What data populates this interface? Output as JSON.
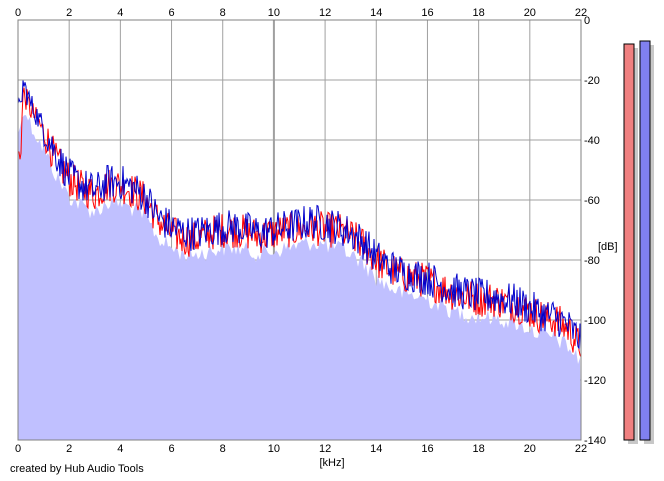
{
  "footer": "created by Hub Audio Tools",
  "colors": {
    "fill": "#c0c0ff",
    "left": "#ff0000",
    "right": "#0000cc",
    "grid": "#a0a0a0",
    "meter_left": "#f08080",
    "meter_right": "#8080f0"
  },
  "chart_data": {
    "type": "line",
    "xlabel": "[kHz]",
    "ylabel": "[dB]",
    "xlim": [
      0,
      22
    ],
    "ylim": [
      -140,
      0
    ],
    "x_ticks": [
      "0",
      "2",
      "4",
      "6",
      "8",
      "10",
      "12",
      "14",
      "16",
      "18",
      "20",
      "22"
    ],
    "y_ticks": [
      "0",
      "-20",
      "-40",
      "-60",
      "-80",
      "-100",
      "-120",
      "-140"
    ],
    "grid": true,
    "series": [
      {
        "color": "#ff0000",
        "points": [
          [
            0.1,
            -45
          ],
          [
            0.2,
            -24
          ],
          [
            0.5,
            -30
          ],
          [
            1,
            -37
          ],
          [
            1.5,
            -47
          ],
          [
            2,
            -53
          ],
          [
            2.5,
            -56
          ],
          [
            3,
            -58
          ],
          [
            3.5,
            -55
          ],
          [
            4,
            -55
          ],
          [
            4.5,
            -57
          ],
          [
            5,
            -60
          ],
          [
            5.5,
            -67
          ],
          [
            6,
            -71
          ],
          [
            6.5,
            -73
          ],
          [
            7,
            -73
          ],
          [
            7.5,
            -71
          ],
          [
            8,
            -70
          ],
          [
            8.5,
            -70
          ],
          [
            9,
            -71
          ],
          [
            9.5,
            -72
          ],
          [
            10,
            -71
          ],
          [
            10.5,
            -70
          ],
          [
            11,
            -70
          ],
          [
            11.5,
            -69
          ],
          [
            12,
            -70
          ],
          [
            12.5,
            -70
          ],
          [
            13,
            -72
          ],
          [
            13.5,
            -75
          ],
          [
            14,
            -80
          ],
          [
            14.5,
            -83
          ],
          [
            15,
            -85
          ],
          [
            15.5,
            -86
          ],
          [
            16,
            -87
          ],
          [
            16.5,
            -89
          ],
          [
            17,
            -91
          ],
          [
            17.5,
            -92
          ],
          [
            18,
            -93
          ],
          [
            18.5,
            -93
          ],
          [
            19,
            -94
          ],
          [
            19.5,
            -95
          ],
          [
            20,
            -97
          ],
          [
            20.5,
            -99
          ],
          [
            21,
            -100
          ],
          [
            21.5,
            -103
          ],
          [
            21.9,
            -108
          ]
        ]
      },
      {
        "color": "#0000cc",
        "points": [
          [
            0.1,
            -30
          ],
          [
            0.2,
            -21
          ],
          [
            0.5,
            -28
          ],
          [
            1,
            -36
          ],
          [
            1.5,
            -45
          ],
          [
            2,
            -52
          ],
          [
            2.5,
            -55
          ],
          [
            3,
            -57
          ],
          [
            3.5,
            -54
          ],
          [
            4,
            -54
          ],
          [
            4.5,
            -56
          ],
          [
            5,
            -59
          ],
          [
            5.5,
            -66
          ],
          [
            6,
            -69
          ],
          [
            6.5,
            -71
          ],
          [
            7,
            -71
          ],
          [
            7.5,
            -70
          ],
          [
            8,
            -69
          ],
          [
            8.5,
            -69
          ],
          [
            9,
            -70
          ],
          [
            9.5,
            -71
          ],
          [
            10,
            -70
          ],
          [
            10.5,
            -69
          ],
          [
            11,
            -68
          ],
          [
            11.5,
            -67
          ],
          [
            12,
            -68
          ],
          [
            12.5,
            -69
          ],
          [
            13,
            -71
          ],
          [
            13.5,
            -74
          ],
          [
            14,
            -79
          ],
          [
            14.5,
            -82
          ],
          [
            15,
            -84
          ],
          [
            15.5,
            -85
          ],
          [
            16,
            -86
          ],
          [
            16.5,
            -88
          ],
          [
            17,
            -90
          ],
          [
            17.5,
            -91
          ],
          [
            18,
            -92
          ],
          [
            18.5,
            -92
          ],
          [
            19,
            -93
          ],
          [
            19.5,
            -94
          ],
          [
            20,
            -96
          ],
          [
            20.5,
            -98
          ],
          [
            21,
            -99
          ],
          [
            21.5,
            -102
          ],
          [
            21.9,
            -106
          ]
        ]
      }
    ]
  },
  "meters": {
    "left_db": -8,
    "right_db": -7,
    "range": [
      -140,
      0
    ]
  }
}
